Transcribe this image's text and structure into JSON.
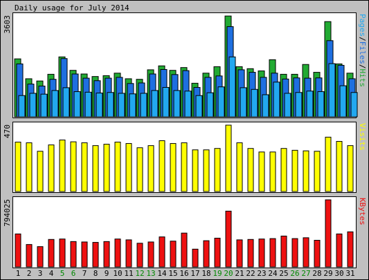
{
  "chart_data": {
    "type": "bar",
    "title": "Daily usage for July 2014",
    "x": [
      "1",
      "2",
      "3",
      "4",
      "5",
      "6",
      "7",
      "8",
      "9",
      "10",
      "11",
      "12",
      "13",
      "14",
      "15",
      "16",
      "17",
      "18",
      "19",
      "20",
      "21",
      "22",
      "23",
      "24",
      "25",
      "26",
      "27",
      "28",
      "29",
      "30",
      "31"
    ],
    "weekend_days": [
      "5",
      "6",
      "12",
      "13",
      "19",
      "20",
      "26",
      "27"
    ],
    "colors": {
      "hits": "#22aa33",
      "files": "#1e6fe0",
      "pages": "#22a8f0",
      "visits": "#ffff00",
      "kbytes": "#ee1111",
      "weekday_label": "#000000",
      "weekend_label": "#008800",
      "background": "#c0c0c0",
      "panel": "#ffffff"
    },
    "panels": [
      {
        "id": "pages_files_hits",
        "ymax_label": "3603",
        "ylim": [
          0,
          3603
        ],
        "right_label_parts": [
          {
            "text": "Pages",
            "color": "#22a8f0"
          },
          {
            "text": "/",
            "color": "#000000"
          },
          {
            "text": "Files",
            "color": "#1e6fe0"
          },
          {
            "text": "/",
            "color": "#000000"
          },
          {
            "text": "Hits",
            "color": "#22aa33"
          }
        ],
        "series": [
          {
            "name": "Hits",
            "values": [
              2070,
              1360,
              1280,
              1520,
              2140,
              1660,
              1530,
              1440,
              1470,
              1560,
              1360,
              1340,
              1680,
              1820,
              1660,
              1760,
              1200,
              1560,
              1790,
              3600,
              1790,
              1720,
              1640,
              2040,
              1520,
              1520,
              1870,
              1590,
              3400,
              1890,
              1560
            ]
          },
          {
            "name": "Files",
            "values": [
              1890,
              1170,
              1100,
              1340,
              2080,
              1530,
              1380,
              1290,
              1380,
              1410,
              1190,
              1210,
              1530,
              1690,
              1510,
              1650,
              1050,
              1410,
              1460,
              3220,
              1680,
              1590,
              1410,
              1560,
              1350,
              1390,
              1380,
              1390,
              2720,
              1840,
              1360
            ]
          },
          {
            "name": "Pages",
            "values": [
              760,
              840,
              810,
              940,
              1040,
              900,
              880,
              850,
              870,
              840,
              820,
              840,
              940,
              1050,
              940,
              920,
              760,
              860,
              1070,
              2140,
              1040,
              980,
              790,
              1240,
              840,
              870,
              920,
              900,
              1900,
              1110,
              870
            ]
          }
        ]
      },
      {
        "id": "visits",
        "ymax_label": "470",
        "ylim": [
          0,
          470
        ],
        "right_label_parts": [
          {
            "text": "Visits",
            "color": "#ffff00"
          }
        ],
        "series": [
          {
            "name": "Visits",
            "values": [
              350,
              345,
              285,
              330,
              365,
              352,
              345,
              325,
              335,
              350,
              340,
              310,
              325,
              360,
              340,
              345,
              295,
              295,
              305,
              470,
              345,
              305,
              280,
              280,
              305,
              292,
              288,
              285,
              385,
              355,
              325
            ]
          }
        ]
      },
      {
        "id": "kbytes",
        "ymax_label": "794025",
        "ylim": [
          0,
          794025
        ],
        "right_label_parts": [
          {
            "text": "KBytes",
            "color": "#ee1111"
          }
        ],
        "series": [
          {
            "name": "KBytes",
            "values": [
              390000,
              265000,
              240000,
              325000,
              330000,
              300000,
              295000,
              290000,
              300000,
              330000,
              320000,
              280000,
              295000,
              355000,
              305000,
              400000,
              210000,
              310000,
              340000,
              660000,
              320000,
              325000,
              330000,
              335000,
              365000,
              335000,
              345000,
              315000,
              794025,
              390000,
              415000
            ]
          }
        ]
      }
    ]
  }
}
